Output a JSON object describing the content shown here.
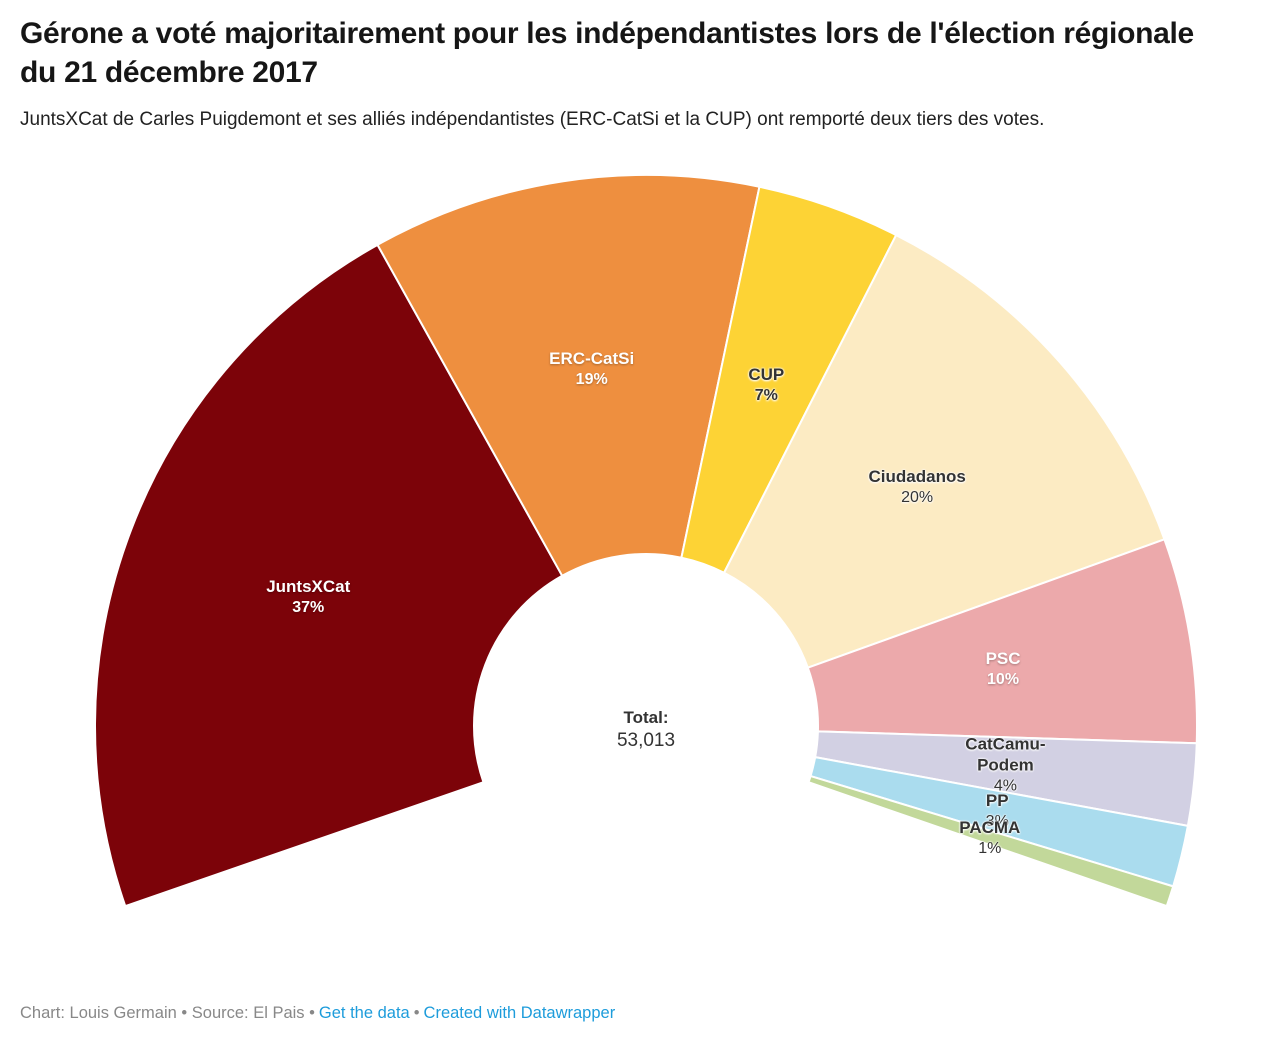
{
  "header": {
    "title": "Gérone a voté majoritairement pour les indépendantistes lors de l'élection régionale du 21 décembre 2017",
    "subtitle": "JuntsXCat de Carles Puigdemont et ses alliés indépendantistes (ERC-CatSi et la CUP) ont remporté deux tiers des votes."
  },
  "footer": {
    "credit": "Chart: Louis Germain • Source: El Pais •",
    "get_data_label": "Get the data",
    "bullet": "•",
    "created_label": "Created with Datawrapper",
    "link_color": "#1D9CDB"
  },
  "chart_data": {
    "type": "pie",
    "subtype": "half-donut",
    "title": "Gérone a voté majoritairement pour les indépendantistes lors de l'élection régionale du 21 décembre 2017",
    "subtitle": "JuntsXCat de Carles Puigdemont et ses alliés indépendantistes (ERC-CatSi et la CUP) ont remporté deux tiers des votes.",
    "degrees_per_percent": 2.16,
    "center_label": {
      "title": "Total:",
      "value": "53,013"
    },
    "series": [
      {
        "party": "JuntsXCat",
        "pct": 37,
        "pct_label": "37%",
        "color": "#7C0309",
        "label_color": "#FFFFFF",
        "pct_bold": true,
        "name_lines": [
          "JuntsXCat"
        ]
      },
      {
        "party": "ERC-CatSi",
        "pct": 19,
        "pct_label": "19%",
        "color": "#EE8F3F",
        "label_color": "#FFFFFF",
        "pct_bold": true,
        "name_lines": [
          "ERC-CatSi"
        ]
      },
      {
        "party": "CUP",
        "pct": 7,
        "pct_label": "7%",
        "color": "#FDD335",
        "label_color": "#333333",
        "pct_bold": true,
        "name_lines": [
          "CUP"
        ]
      },
      {
        "party": "Ciudadanos",
        "pct": 20,
        "pct_label": "20%",
        "color": "#FCEBC3",
        "label_color": "#333333",
        "pct_bold": false,
        "name_lines": [
          "Ciudadanos"
        ]
      },
      {
        "party": "PSC",
        "pct": 10,
        "pct_label": "10%",
        "color": "#ECA9AB",
        "label_color": "#FFFFFF",
        "pct_bold": true,
        "name_lines": [
          "PSC"
        ]
      },
      {
        "party": "CatCamu-Podem",
        "pct": 4,
        "pct_label": "4%",
        "color": "#D2D0E3",
        "label_color": "#333333",
        "pct_bold": false,
        "name_lines": [
          "CatCamu-",
          "Podem"
        ]
      },
      {
        "party": "PP",
        "pct": 3,
        "pct_label": "3%",
        "color": "#AADCEE",
        "label_color": "#333333",
        "pct_bold": false,
        "name_lines": [
          "PP"
        ]
      },
      {
        "party": "PACMA",
        "pct": 1,
        "pct_label": "1%",
        "color": "#C2D89A",
        "label_color": "#333333",
        "pct_bold": false,
        "name_lines": [
          "PACMA"
        ]
      }
    ]
  }
}
